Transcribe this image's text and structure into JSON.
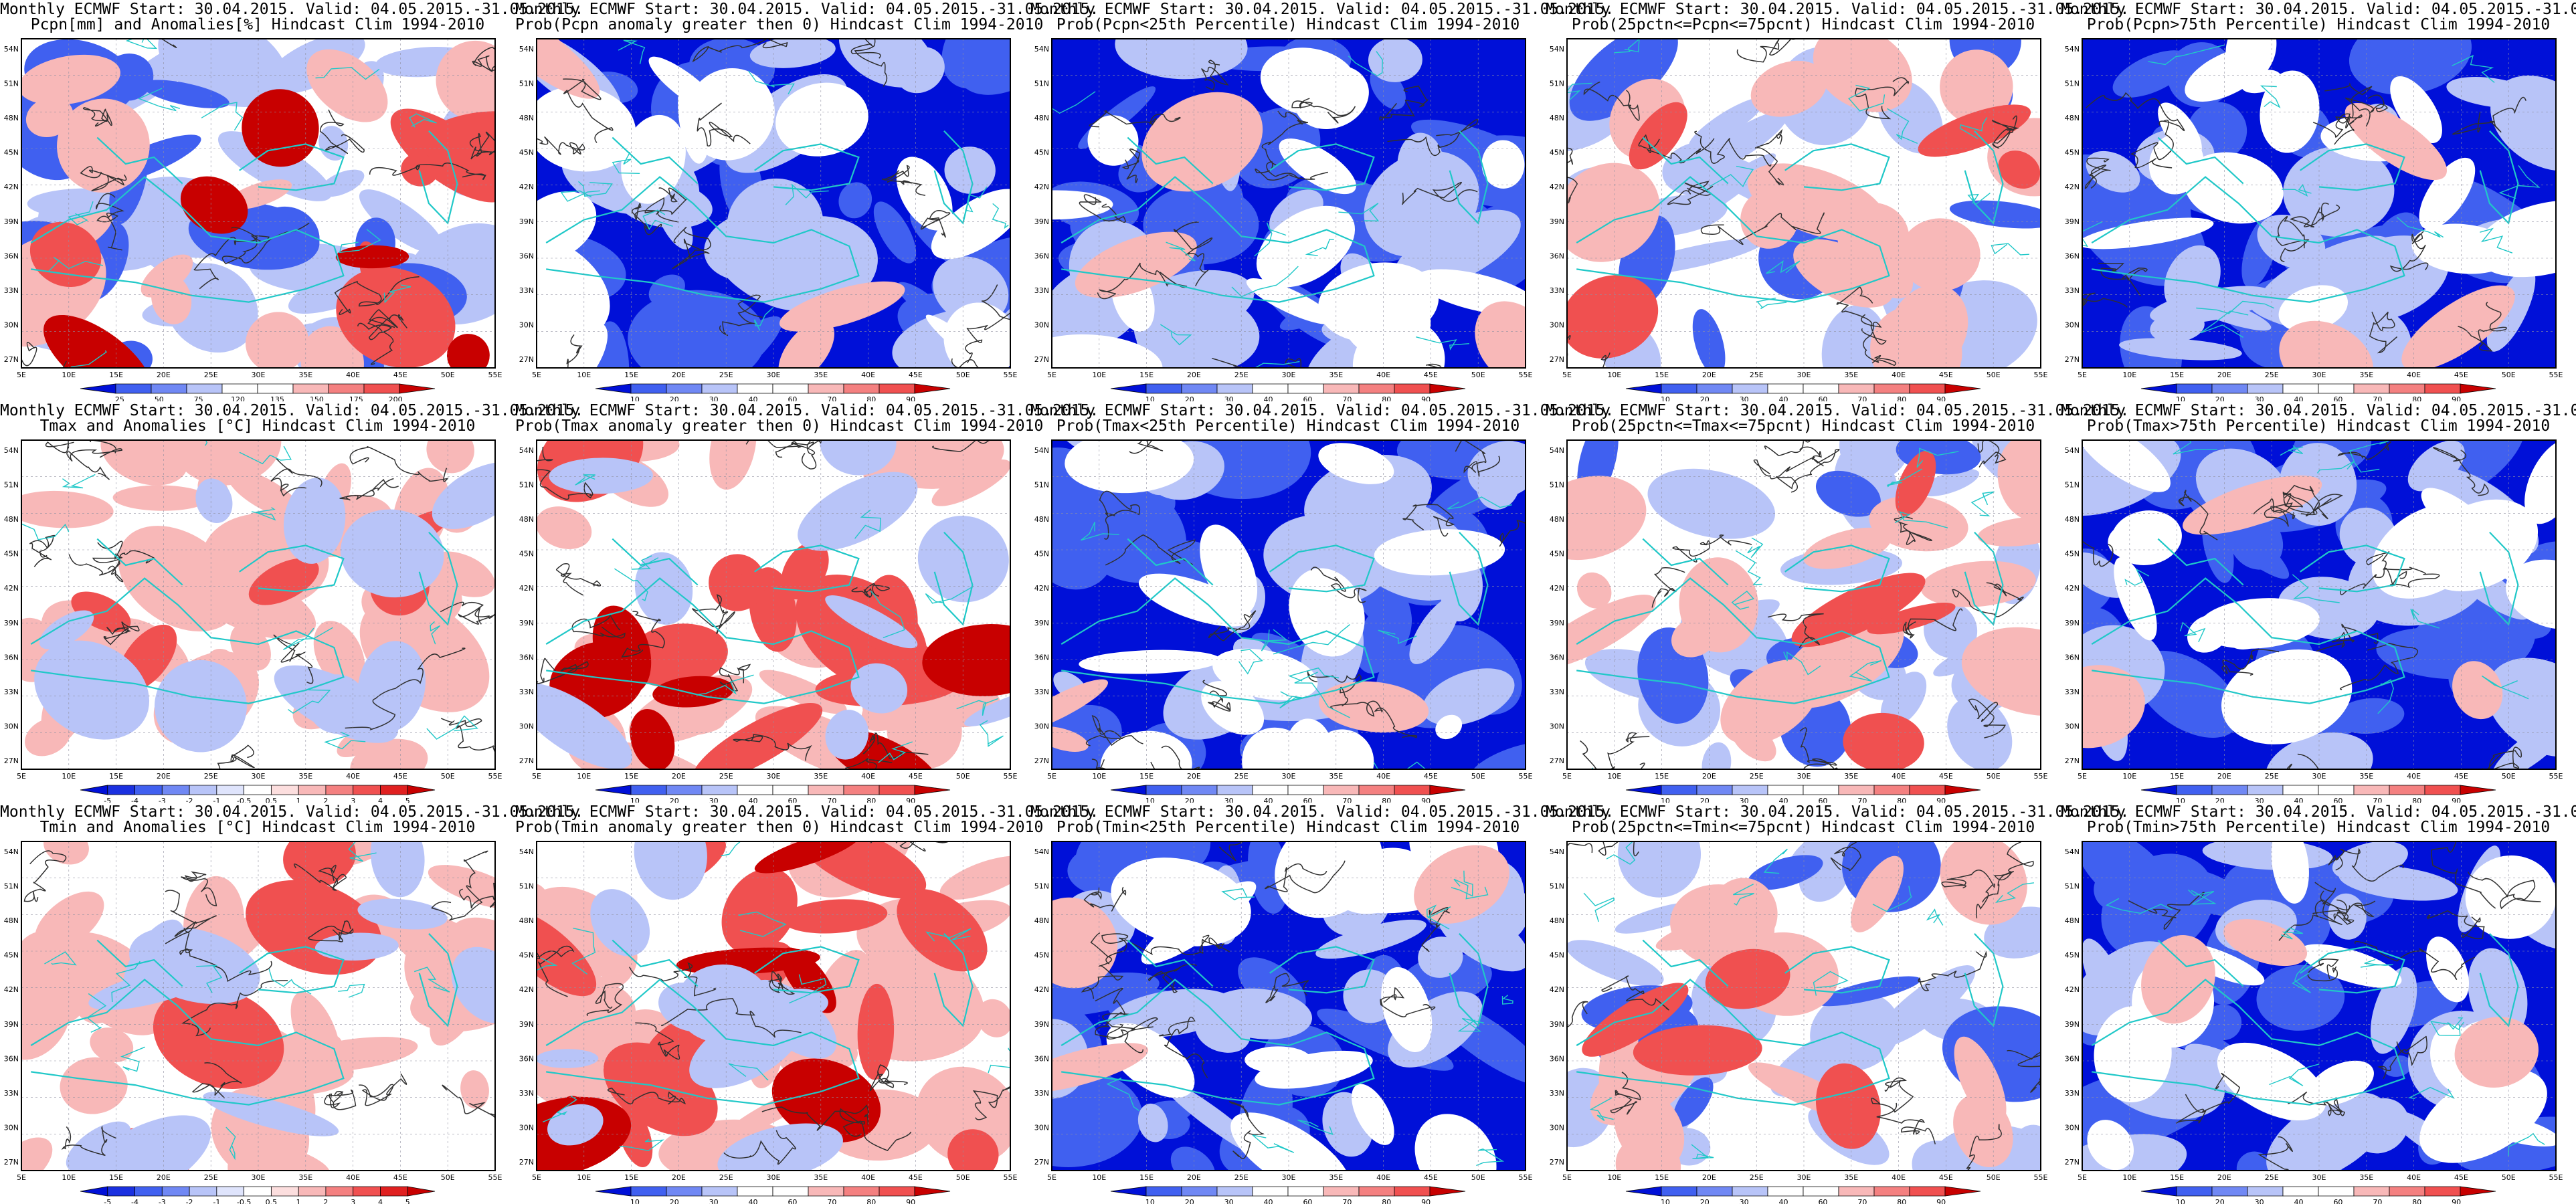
{
  "header": "Monthly ECMWF Start: 30.04.2015. Valid: 04.05.2015.-31.05.2015.",
  "lat_labels": [
    "54N",
    "51N",
    "48N",
    "45N",
    "42N",
    "39N",
    "36N",
    "33N",
    "30N",
    "27N"
  ],
  "lon_labels": [
    "5E",
    "10E",
    "15E",
    "20E",
    "25E",
    "30E",
    "35E",
    "40E",
    "45E",
    "50E",
    "55E"
  ],
  "colorbars": {
    "pcpn": [
      "25",
      "50",
      "75",
      "120",
      "135",
      "150",
      "175",
      "200"
    ],
    "temp": [
      "-5",
      "-4",
      "-3",
      "-2",
      "-1",
      "-0.5",
      "0.5",
      "1",
      "2",
      "3",
      "4",
      "5"
    ],
    "prob": [
      "10",
      "20",
      "30",
      "40",
      "60",
      "70",
      "80",
      "90"
    ]
  },
  "colors": {
    "deep_blue": "#0010d8",
    "mid_blue": "#4060f0",
    "light_blue": "#b8c4f8",
    "light_red": "#f8b8b8",
    "mid_red": "#f05050",
    "deep_red": "#c80000",
    "coast": "#20c8c8",
    "contour": "#303030"
  },
  "panels": [
    {
      "row": 0,
      "col": 0,
      "scale": "pcpn",
      "subtitle": "Pcpn[mm] and Anomalies[%] Hindcast Clim 1994-2010"
    },
    {
      "row": 0,
      "col": 1,
      "scale": "prob",
      "subtitle": "Prob(Pcpn anomaly greater then 0) Hindcast Clim 1994-2010"
    },
    {
      "row": 0,
      "col": 2,
      "scale": "prob",
      "subtitle": "Prob(Pcpn<25th Percentile) Hindcast Clim 1994-2010"
    },
    {
      "row": 0,
      "col": 3,
      "scale": "prob",
      "subtitle": "Prob(25pctn<=Pcpn<=75pcnt) Hindcast Clim 1994-2010"
    },
    {
      "row": 0,
      "col": 4,
      "scale": "prob",
      "subtitle": "Prob(Pcpn>75th Percentile) Hindcast Clim 1994-2010"
    },
    {
      "row": 1,
      "col": 0,
      "scale": "temp",
      "subtitle": "Tmax and Anomalies [°C] Hindcast Clim 1994-2010"
    },
    {
      "row": 1,
      "col": 1,
      "scale": "prob",
      "subtitle": "Prob(Tmax anomaly greater then 0) Hindcast Clim 1994-2010"
    },
    {
      "row": 1,
      "col": 2,
      "scale": "prob",
      "subtitle": "Prob(Tmax<25th Percentile) Hindcast Clim 1994-2010"
    },
    {
      "row": 1,
      "col": 3,
      "scale": "prob",
      "subtitle": "Prob(25pctn<=Tmax<=75pcnt) Hindcast Clim 1994-2010"
    },
    {
      "row": 1,
      "col": 4,
      "scale": "prob",
      "subtitle": "Prob(Tmax>75th Percentile) Hindcast Clim 1994-2010"
    },
    {
      "row": 2,
      "col": 0,
      "scale": "temp",
      "subtitle": "Tmin and Anomalies [°C] Hindcast Clim 1994-2010"
    },
    {
      "row": 2,
      "col": 1,
      "scale": "prob",
      "subtitle": "Prob(Tmin anomaly greater then 0) Hindcast Clim 1994-2010"
    },
    {
      "row": 2,
      "col": 2,
      "scale": "prob",
      "subtitle": "Prob(Tmin<25th Percentile) Hindcast Clim 1994-2010"
    },
    {
      "row": 2,
      "col": 3,
      "scale": "prob",
      "subtitle": "Prob(25pctn<=Tmin<=75pcnt) Hindcast Clim 1994-2010"
    },
    {
      "row": 2,
      "col": 4,
      "scale": "prob",
      "subtitle": "Prob(Tmin>75th Percentile) Hindcast Clim 1994-2010"
    }
  ]
}
